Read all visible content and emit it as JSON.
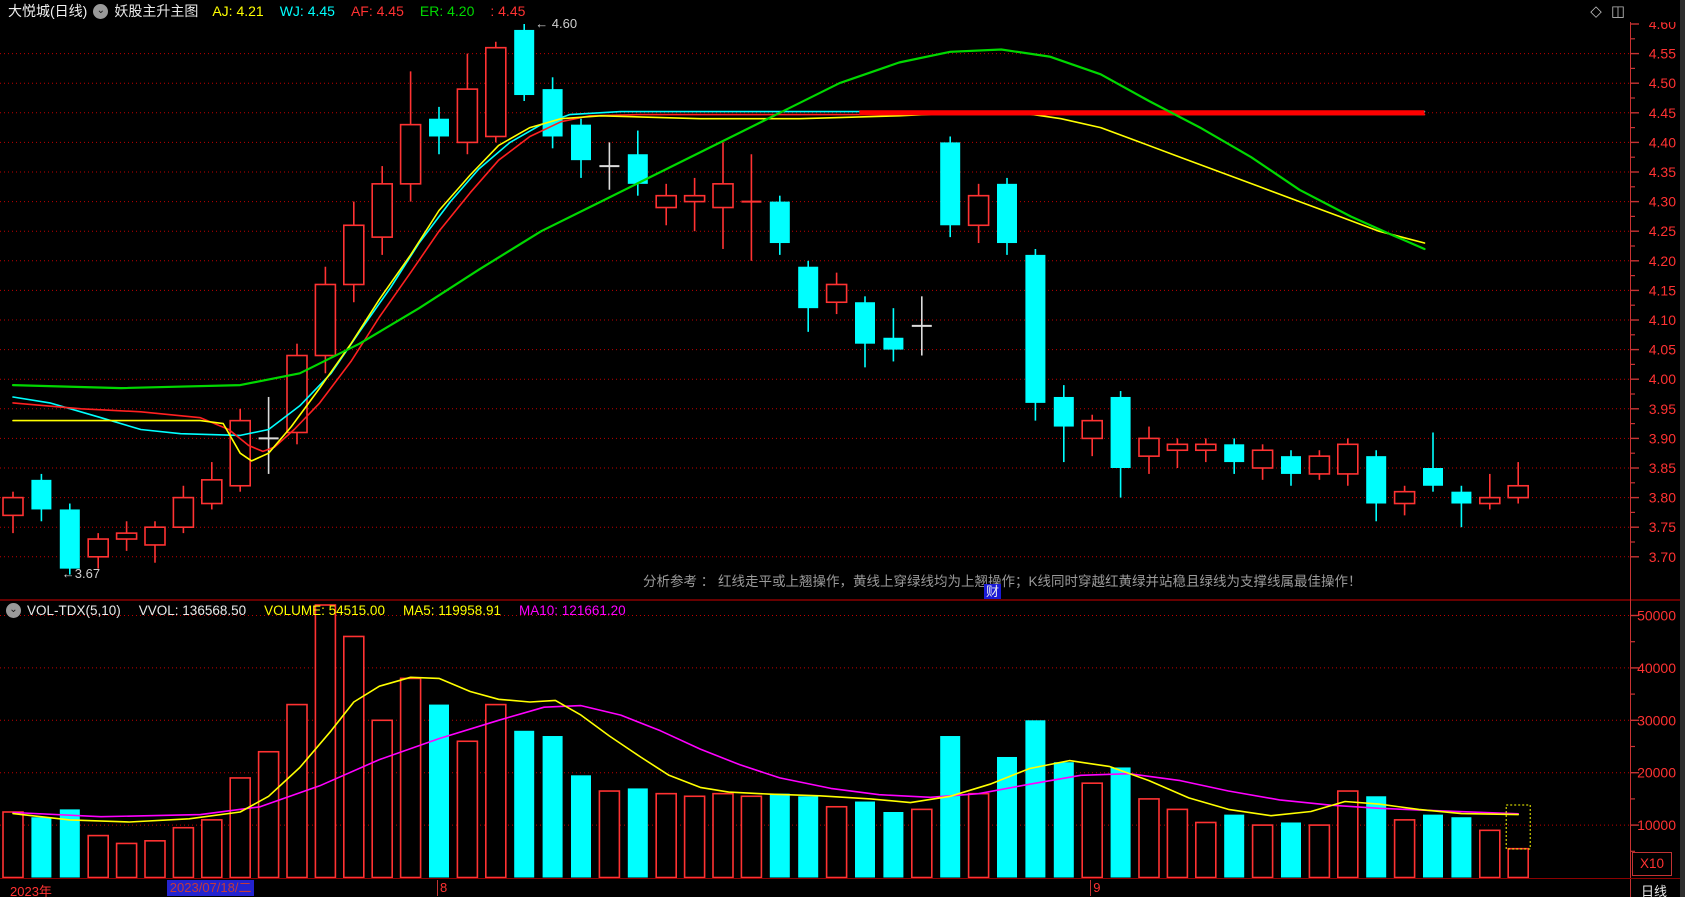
{
  "header": {
    "symbol": "大悦城(日线)",
    "indicator": "妖股主升主图",
    "fields": [
      {
        "label": "AJ:",
        "value": "4.21",
        "color": "#ffff00"
      },
      {
        "label": "WJ:",
        "value": "4.45",
        "color": "#00ffff"
      },
      {
        "label": "AF:",
        "value": "4.45",
        "color": "#ff3232"
      },
      {
        "label": "ER:",
        "value": "4.20",
        "color": "#00d800"
      },
      {
        "label": ":",
        "value": "4.45",
        "color": "#ff3232"
      }
    ]
  },
  "icons": {
    "chevron_circle": "⌄",
    "diamond": "◇",
    "split_square": "◫"
  },
  "main_chart": {
    "analysis_text": "分析参考 ： 红线走平或上翘操作，黄线上穿绿线均为上翘操作；K线同时穿越红黄绿并站稳且绿线为支撑线属最佳操作！",
    "badge": "财",
    "high_annotation": "← 4.60",
    "low_annotation": "←3.67"
  },
  "volume_header": {
    "fields": [
      {
        "label": "VOL-TDX(5,10)",
        "value": "",
        "color": "#e8e8e8"
      },
      {
        "label": "VVOL:",
        "value": "136568.50",
        "color": "#e8e8e8"
      },
      {
        "label": "VOLUME:",
        "value": "54515.00",
        "color": "#ffff00"
      },
      {
        "label": "MA5:",
        "value": "119958.91",
        "color": "#ffff00"
      },
      {
        "label": "MA10:",
        "value": "121661.20",
        "color": "#ff00ff"
      }
    ]
  },
  "volume_pane": {
    "multiplier": "X10"
  },
  "bottom": {
    "year": "2023年",
    "selected_date": "2023/07/18/二",
    "selected_index": 7,
    "months": [
      {
        "label": "8",
        "index": 15
      },
      {
        "label": "9",
        "index": 38
      }
    ],
    "period": "日线"
  },
  "colors": {
    "up": "#ff3232",
    "down": "#00ffff",
    "doji": "#dcdcdc",
    "grid": "#c00000",
    "axis_line": "#c83232",
    "axis_text": "#ff3232",
    "separator": "#8b0000",
    "ma_cyan": "#00ffff",
    "ma_red": "#ff2020",
    "ma_yellow": "#ffff00",
    "ma_green": "#00d800",
    "flat_line": "#ff0000",
    "vol_ma5": "#ffff00",
    "vol_ma10": "#ff00ff",
    "cursor_box": "#ffff00"
  },
  "chart_data": {
    "type": "candlestick_with_volume",
    "title": "大悦城 日线",
    "price_axis": {
      "min": 3.7,
      "max": 4.6,
      "ticks": [
        4.6,
        4.55,
        4.5,
        4.45,
        4.4,
        4.35,
        4.3,
        4.25,
        4.2,
        4.15,
        4.1,
        4.05,
        4.0,
        3.95,
        3.9,
        3.85,
        3.8,
        3.75,
        3.7
      ]
    },
    "volume_axis": {
      "min": 0,
      "max": 55000,
      "ticks": [
        50000,
        40000,
        30000,
        20000,
        10000
      ],
      "multiplier": "X10"
    },
    "bars_ohlcv": [
      [
        3.77,
        3.81,
        3.74,
        3.8,
        12500
      ],
      [
        3.83,
        3.84,
        3.76,
        3.78,
        11500
      ],
      [
        3.78,
        3.79,
        3.67,
        3.68,
        13000
      ],
      [
        3.7,
        3.74,
        3.68,
        3.73,
        8000
      ],
      [
        3.73,
        3.76,
        3.71,
        3.74,
        6500
      ],
      [
        3.72,
        3.76,
        3.69,
        3.75,
        7000
      ],
      [
        3.75,
        3.82,
        3.74,
        3.8,
        9500
      ],
      [
        3.79,
        3.86,
        3.78,
        3.83,
        11000
      ],
      [
        3.82,
        3.95,
        3.81,
        3.93,
        19000
      ],
      [
        3.9,
        3.97,
        3.84,
        3.9,
        24000
      ],
      [
        3.91,
        4.06,
        3.89,
        4.04,
        33000
      ],
      [
        4.04,
        4.19,
        4.01,
        4.16,
        52000
      ],
      [
        4.16,
        4.3,
        4.13,
        4.26,
        46000
      ],
      [
        4.24,
        4.36,
        4.21,
        4.33,
        30000
      ],
      [
        4.33,
        4.52,
        4.3,
        4.43,
        38000
      ],
      [
        4.44,
        4.46,
        4.38,
        4.41,
        33000
      ],
      [
        4.4,
        4.55,
        4.38,
        4.49,
        26000
      ],
      [
        4.41,
        4.57,
        4.4,
        4.56,
        33000
      ],
      [
        4.59,
        4.6,
        4.47,
        4.48,
        28000
      ],
      [
        4.49,
        4.51,
        4.39,
        4.41,
        27000
      ],
      [
        4.43,
        4.44,
        4.34,
        4.37,
        19500
      ],
      [
        4.36,
        4.4,
        4.32,
        4.36,
        16500
      ],
      [
        4.38,
        4.42,
        4.31,
        4.33,
        17000
      ],
      [
        4.29,
        4.33,
        4.26,
        4.31,
        16000
      ],
      [
        4.3,
        4.34,
        4.25,
        4.31,
        15500
      ],
      [
        4.29,
        4.4,
        4.22,
        4.33,
        16000
      ],
      [
        4.3,
        4.38,
        4.2,
        4.3,
        15500
      ],
      [
        4.3,
        4.31,
        4.21,
        4.23,
        16000
      ],
      [
        4.19,
        4.2,
        4.08,
        4.12,
        15500
      ],
      [
        4.13,
        4.18,
        4.11,
        4.16,
        13500
      ],
      [
        4.13,
        4.14,
        4.02,
        4.06,
        14500
      ],
      [
        4.07,
        4.12,
        4.03,
        4.05,
        12500
      ],
      [
        4.09,
        4.14,
        4.04,
        4.09,
        13000
      ],
      [
        4.4,
        4.41,
        4.24,
        4.26,
        27000
      ],
      [
        4.26,
        4.33,
        4.23,
        4.31,
        16000
      ],
      [
        4.33,
        4.34,
        4.21,
        4.23,
        23000
      ],
      [
        4.21,
        4.22,
        3.93,
        3.96,
        30000
      ],
      [
        3.97,
        3.99,
        3.86,
        3.92,
        22000
      ],
      [
        3.9,
        3.94,
        3.87,
        3.93,
        18000
      ],
      [
        3.97,
        3.98,
        3.8,
        3.85,
        21000
      ],
      [
        3.87,
        3.92,
        3.84,
        3.9,
        15000
      ],
      [
        3.88,
        3.9,
        3.85,
        3.89,
        13000
      ],
      [
        3.88,
        3.9,
        3.86,
        3.89,
        10500
      ],
      [
        3.89,
        3.9,
        3.84,
        3.86,
        12000
      ],
      [
        3.85,
        3.89,
        3.83,
        3.88,
        10000
      ],
      [
        3.87,
        3.88,
        3.82,
        3.84,
        10500
      ],
      [
        3.84,
        3.88,
        3.83,
        3.87,
        10000
      ],
      [
        3.84,
        3.9,
        3.82,
        3.89,
        16500
      ],
      [
        3.87,
        3.88,
        3.76,
        3.79,
        15500
      ],
      [
        3.79,
        3.82,
        3.77,
        3.81,
        11000
      ],
      [
        3.85,
        3.91,
        3.81,
        3.82,
        12000
      ],
      [
        3.81,
        3.82,
        3.75,
        3.79,
        11500
      ],
      [
        3.79,
        3.84,
        3.78,
        3.8,
        9000
      ],
      [
        3.8,
        3.86,
        3.79,
        3.82,
        5500
      ]
    ],
    "doji_indexes": [
      9,
      21,
      32
    ],
    "annotations": {
      "high": {
        "index": 18,
        "price": 4.6
      },
      "low": {
        "index": 2,
        "price": 3.67
      }
    },
    "overlays": {
      "cyan_WJ": [
        [
          0,
          3.97
        ],
        [
          1.3,
          3.96
        ],
        [
          3.1,
          3.935
        ],
        [
          4.5,
          3.915
        ],
        [
          5.9,
          3.908
        ],
        [
          8,
          3.905
        ],
        [
          9,
          3.915
        ],
        [
          10.1,
          3.955
        ],
        [
          11.2,
          4.01
        ],
        [
          12.2,
          4.08
        ],
        [
          13.3,
          4.155
        ],
        [
          14.3,
          4.23
        ],
        [
          15.4,
          4.3
        ],
        [
          16.4,
          4.355
        ],
        [
          17.5,
          4.4
        ],
        [
          18.6,
          4.43
        ],
        [
          19.6,
          4.447
        ],
        [
          21.4,
          4.452
        ],
        [
          49.7,
          4.452
        ]
      ],
      "red_AF": [
        [
          0,
          3.96
        ],
        [
          2.4,
          3.95
        ],
        [
          4.5,
          3.945
        ],
        [
          6.6,
          3.935
        ],
        [
          7.6,
          3.915
        ],
        [
          8.3,
          3.888
        ],
        [
          8.8,
          3.878
        ],
        [
          9.2,
          3.885
        ],
        [
          9.9,
          3.915
        ],
        [
          10.8,
          3.96
        ],
        [
          11.9,
          4.03
        ],
        [
          12.9,
          4.105
        ],
        [
          14,
          4.18
        ],
        [
          15,
          4.25
        ],
        [
          16.1,
          4.315
        ],
        [
          17.1,
          4.37
        ],
        [
          18.2,
          4.41
        ],
        [
          19.3,
          4.435
        ],
        [
          20.3,
          4.445
        ],
        [
          22.1,
          4.447
        ],
        [
          49.7,
          4.447
        ]
      ],
      "yellow_AJ": [
        [
          0,
          3.93
        ],
        [
          3.3,
          3.93
        ],
        [
          6.6,
          3.93
        ],
        [
          7.4,
          3.925
        ],
        [
          8,
          3.875
        ],
        [
          8.4,
          3.862
        ],
        [
          9,
          3.875
        ],
        [
          9.8,
          3.92
        ],
        [
          10.8,
          3.985
        ],
        [
          11.9,
          4.06
        ],
        [
          12.9,
          4.135
        ],
        [
          14,
          4.21
        ],
        [
          15,
          4.285
        ],
        [
          16.1,
          4.345
        ],
        [
          17.1,
          4.395
        ],
        [
          18.2,
          4.425
        ],
        [
          19.3,
          4.44
        ],
        [
          20.7,
          4.445
        ],
        [
          24.2,
          4.44
        ],
        [
          27.7,
          4.44
        ],
        [
          31.2,
          4.445
        ],
        [
          33.3,
          4.45
        ],
        [
          35.5,
          4.45
        ],
        [
          36.9,
          4.44
        ],
        [
          38.3,
          4.425
        ],
        [
          39.7,
          4.4
        ],
        [
          41.1,
          4.375
        ],
        [
          42.5,
          4.35
        ],
        [
          43.9,
          4.325
        ],
        [
          45.3,
          4.3
        ],
        [
          46.7,
          4.275
        ],
        [
          48.1,
          4.25
        ],
        [
          49.7,
          4.23
        ]
      ],
      "green_ER": [
        [
          0,
          3.99
        ],
        [
          3.8,
          3.985
        ],
        [
          8,
          3.99
        ],
        [
          10.1,
          4.01
        ],
        [
          12.2,
          4.06
        ],
        [
          14.3,
          4.12
        ],
        [
          16.4,
          4.185
        ],
        [
          18.6,
          4.25
        ],
        [
          20.7,
          4.3
        ],
        [
          22.8,
          4.35
        ],
        [
          24.9,
          4.4
        ],
        [
          27,
          4.45
        ],
        [
          29.1,
          4.5
        ],
        [
          31.2,
          4.535
        ],
        [
          33,
          4.553
        ],
        [
          34.8,
          4.557
        ],
        [
          36.5,
          4.545
        ],
        [
          38.3,
          4.515
        ],
        [
          40,
          4.47
        ],
        [
          41.8,
          4.425
        ],
        [
          43.6,
          4.375
        ],
        [
          45.3,
          4.32
        ],
        [
          47.1,
          4.275
        ],
        [
          48.5,
          4.245
        ],
        [
          49.7,
          4.22
        ]
      ],
      "flat_thick_red": {
        "price": 4.45,
        "from_index": 29.8,
        "to_index": 49.7,
        "stroke_width": 5
      }
    },
    "volume_overlays": {
      "ma5": [
        [
          0,
          12200
        ],
        [
          2,
          11000
        ],
        [
          4.1,
          10600
        ],
        [
          6.2,
          11200
        ],
        [
          8,
          12500
        ],
        [
          9,
          15500
        ],
        [
          10.1,
          21000
        ],
        [
          11.2,
          28000
        ],
        [
          12,
          33500
        ],
        [
          12.9,
          36500
        ],
        [
          14,
          38200
        ],
        [
          15,
          38000
        ],
        [
          16.1,
          35500
        ],
        [
          17.1,
          34000
        ],
        [
          18.2,
          33500
        ],
        [
          19.1,
          33800
        ],
        [
          20,
          31000
        ],
        [
          21,
          27000
        ],
        [
          22.1,
          23000
        ],
        [
          23.1,
          19500
        ],
        [
          24.2,
          17200
        ],
        [
          25.2,
          16300
        ],
        [
          26.7,
          15900
        ],
        [
          28.4,
          15600
        ],
        [
          30.2,
          15000
        ],
        [
          31.6,
          14300
        ],
        [
          33,
          15500
        ],
        [
          34.4,
          17800
        ],
        [
          35.8,
          20800
        ],
        [
          37.2,
          22300
        ],
        [
          38.6,
          21200
        ],
        [
          40,
          18500
        ],
        [
          41.4,
          15200
        ],
        [
          42.8,
          13000
        ],
        [
          44.3,
          11800
        ],
        [
          45.7,
          12600
        ],
        [
          46.9,
          14500
        ],
        [
          48.1,
          14000
        ],
        [
          49.5,
          13000
        ],
        [
          51,
          12200
        ],
        [
          53,
          11996
        ]
      ],
      "ma10": [
        [
          0,
          12400
        ],
        [
          3.1,
          11600
        ],
        [
          6.6,
          12000
        ],
        [
          8.7,
          13500
        ],
        [
          10.8,
          17500
        ],
        [
          12.9,
          22500
        ],
        [
          15,
          26500
        ],
        [
          17.1,
          30000
        ],
        [
          18.7,
          32500
        ],
        [
          20,
          32800
        ],
        [
          21.4,
          31000
        ],
        [
          22.8,
          28000
        ],
        [
          24.2,
          24500
        ],
        [
          25.6,
          21500
        ],
        [
          27,
          19000
        ],
        [
          28.8,
          17000
        ],
        [
          30.5,
          15800
        ],
        [
          32.3,
          15300
        ],
        [
          34,
          16000
        ],
        [
          35.8,
          17800
        ],
        [
          37.6,
          19500
        ],
        [
          39.3,
          19800
        ],
        [
          41.1,
          18500
        ],
        [
          42.8,
          16500
        ],
        [
          44.6,
          14800
        ],
        [
          46.4,
          13800
        ],
        [
          48.1,
          13200
        ],
        [
          49.9,
          12800
        ],
        [
          53,
          12166
        ]
      ]
    },
    "cursor_index": 53
  }
}
